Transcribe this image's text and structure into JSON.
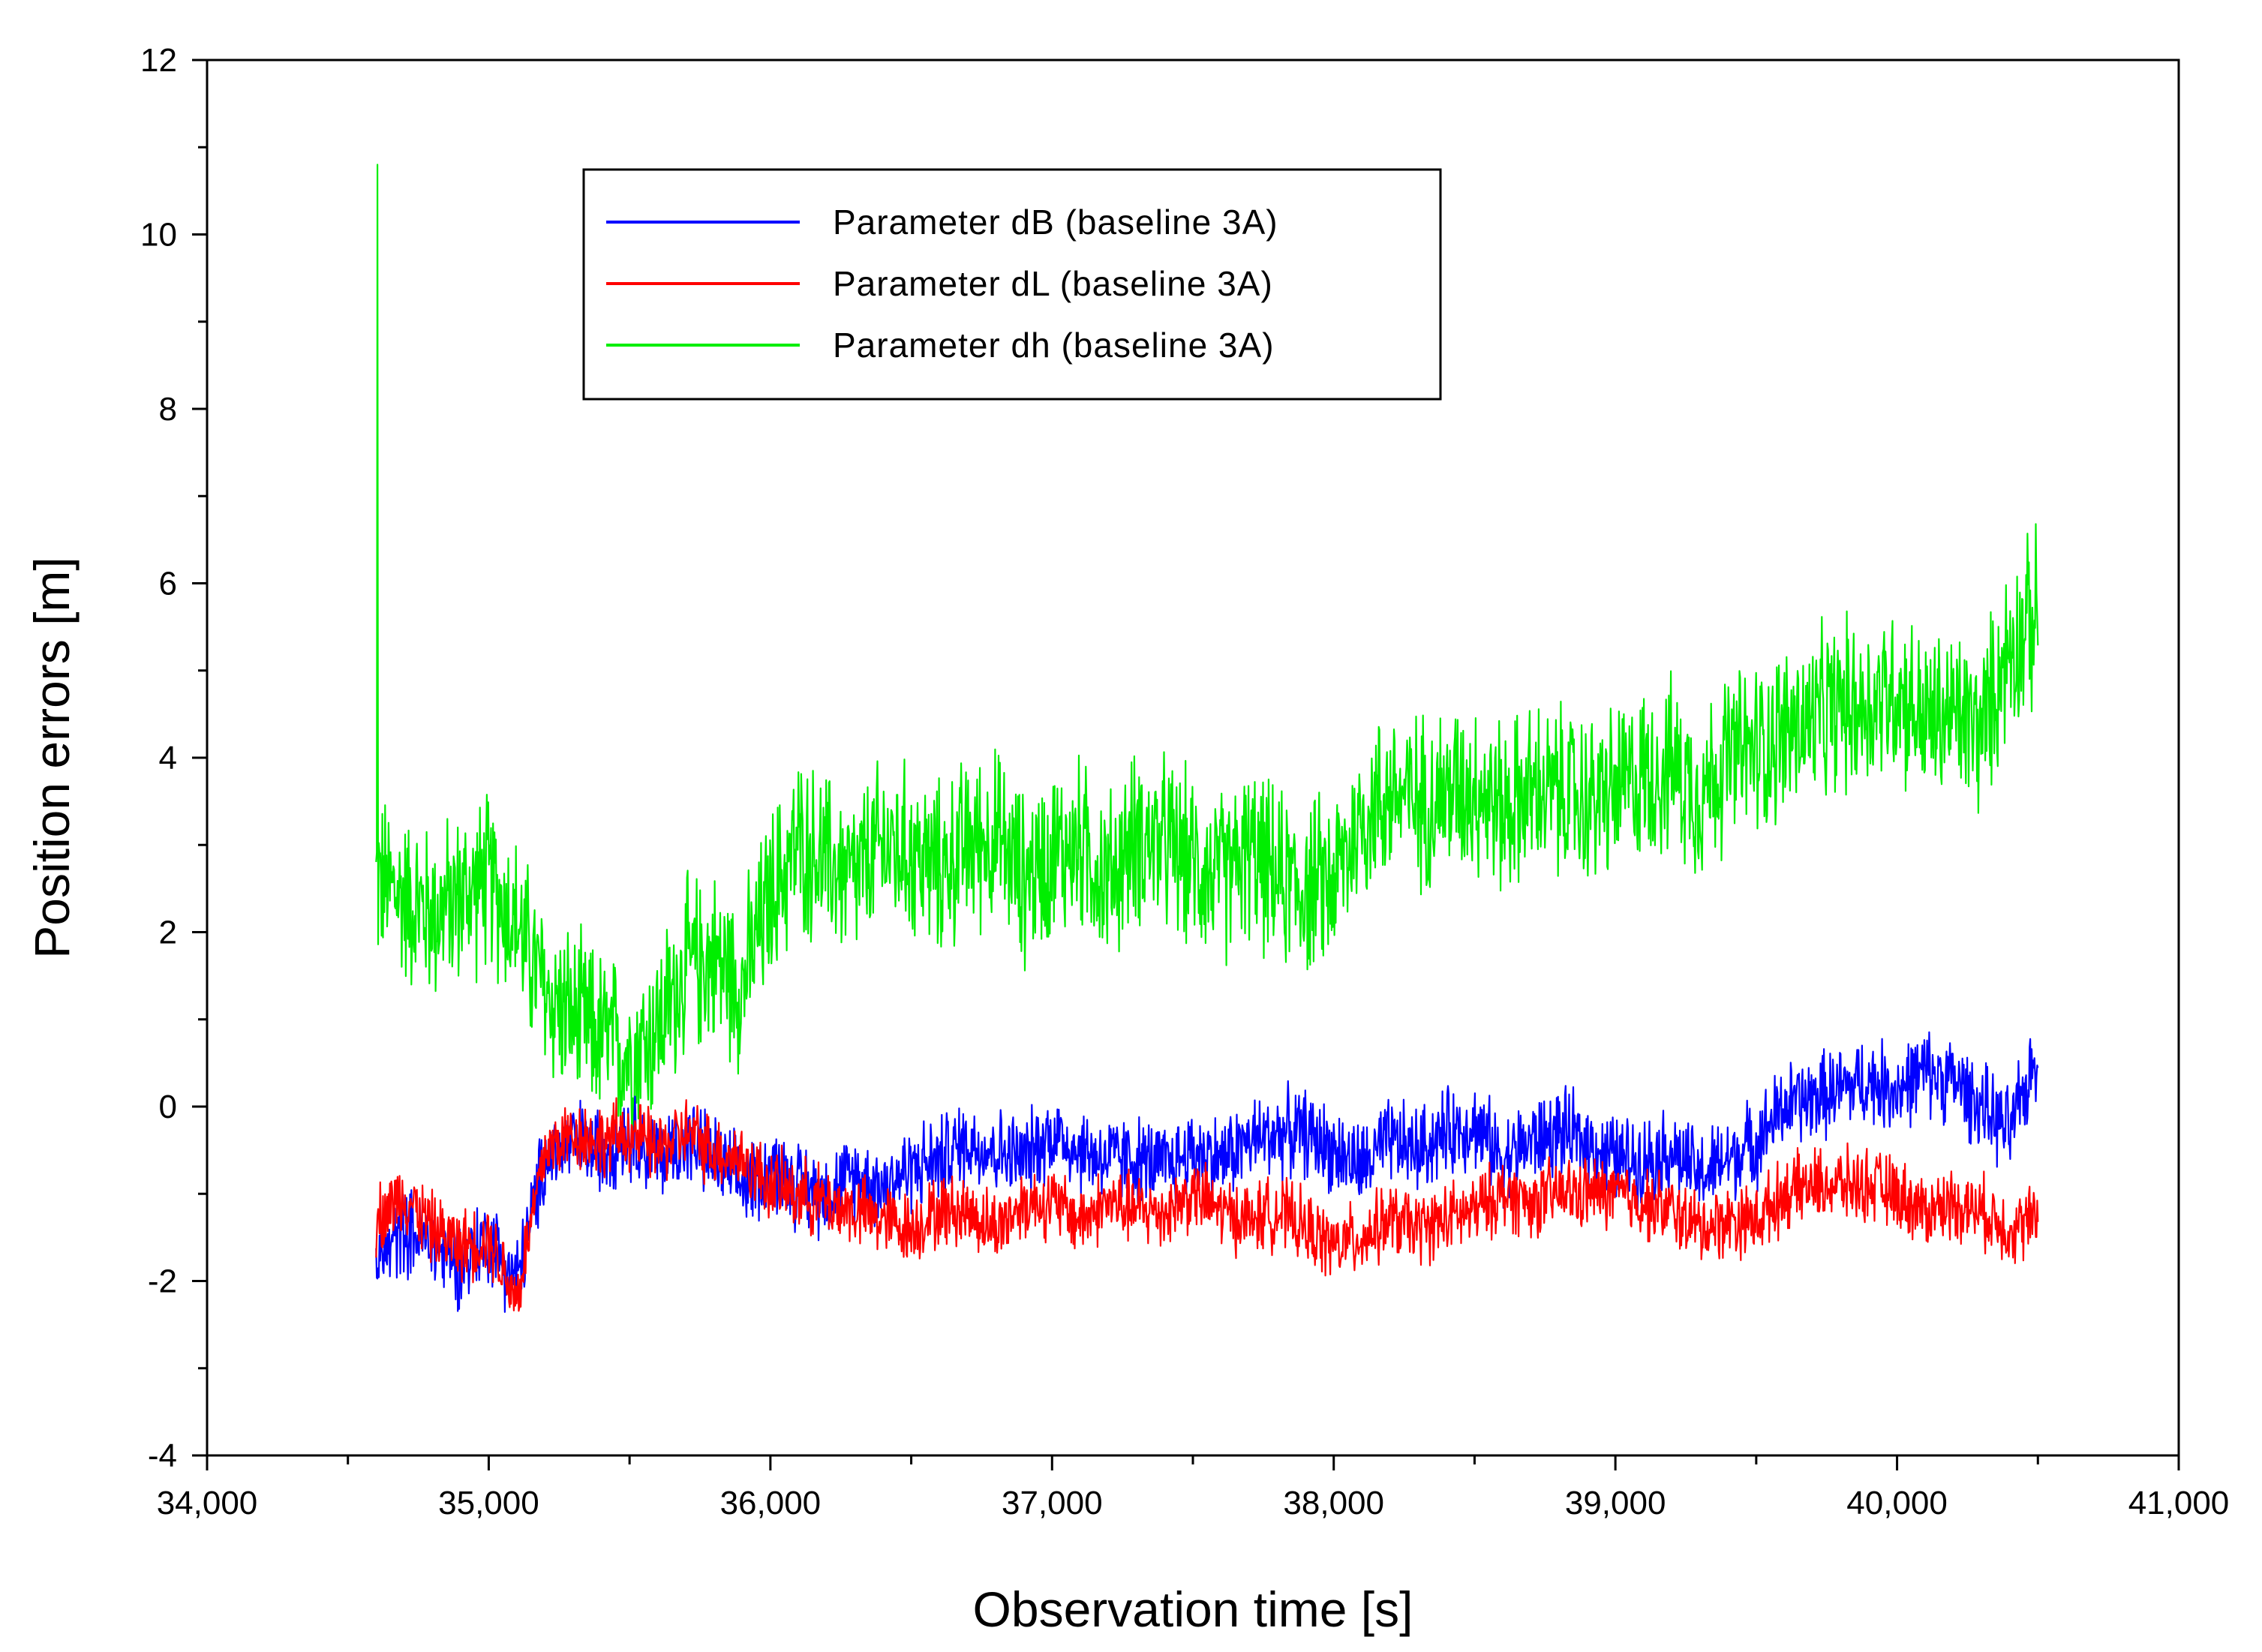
{
  "chart_data": {
    "type": "line",
    "title": "",
    "xlabel": "Observation time [s]",
    "ylabel": "Position errors [m]",
    "xlim": [
      34000,
      41000
    ],
    "ylim": [
      -4,
      12
    ],
    "x_ticks": [
      34000,
      35000,
      36000,
      37000,
      38000,
      39000,
      40000,
      41000
    ],
    "x_tick_labels": [
      "34,000",
      "35,000",
      "36,000",
      "37,000",
      "38,000",
      "39,000",
      "40,000",
      "41,000"
    ],
    "y_ticks": [
      -4,
      -2,
      0,
      2,
      4,
      6,
      8,
      10,
      12
    ],
    "y_tick_labels": [
      "-4",
      "-2",
      "0",
      "2",
      "4",
      "6",
      "8",
      "10",
      "12"
    ],
    "grid": false,
    "legend_position": "top-center",
    "series": [
      {
        "name": "Parameter dB (baseline 3A)",
        "color": "#0000ff",
        "x": [
          34600,
          34700,
          34800,
          34900,
          35000,
          35100,
          35200,
          35300,
          35400,
          35500,
          35600,
          35700,
          35800,
          35900,
          36000,
          36100,
          36200,
          36300,
          36400,
          36500,
          36600,
          36700,
          36800,
          36900,
          37000,
          37100,
          37200,
          37300,
          37400,
          37500,
          37600,
          37700,
          37800,
          37900,
          38000,
          38100,
          38200,
          38300,
          38400,
          38500,
          38600,
          38700,
          38800,
          38900,
          39000,
          39100,
          39200,
          39300,
          39400,
          39500,
          39600,
          39700,
          39800,
          39900,
          40000,
          40100,
          40200,
          40300,
          40400,
          40500
        ],
        "y": [
          -1.8,
          -1.4,
          -1.6,
          -1.8,
          -1.5,
          -2.0,
          -0.6,
          -0.4,
          -0.5,
          -0.3,
          -0.6,
          -0.4,
          -0.6,
          -0.9,
          -0.7,
          -0.9,
          -1.0,
          -0.8,
          -0.9,
          -0.7,
          -0.6,
          -0.4,
          -0.5,
          -0.6,
          -0.3,
          -0.5,
          -0.6,
          -0.6,
          -0.7,
          -0.5,
          -0.6,
          -0.4,
          -0.3,
          -0.3,
          -0.5,
          -0.7,
          -0.4,
          -0.5,
          -0.3,
          -0.2,
          -0.6,
          -0.4,
          -0.3,
          -0.4,
          -0.6,
          -0.6,
          -0.5,
          -0.8,
          -0.6,
          -0.4,
          0.0,
          0.1,
          0.2,
          0.3,
          0.2,
          0.4,
          0.3,
          0.0,
          -0.3,
          0.6
        ],
        "noise_amplitude": 0.6
      },
      {
        "name": "Parameter dL (baseline 3A)",
        "color": "#ff0000",
        "x": [
          34600,
          34700,
          34800,
          34900,
          35000,
          35100,
          35200,
          35300,
          35400,
          35500,
          35600,
          35700,
          35800,
          35900,
          36000,
          36100,
          36200,
          36300,
          36400,
          36500,
          36600,
          36700,
          36800,
          36900,
          37000,
          37100,
          37200,
          37300,
          37400,
          37500,
          37600,
          37700,
          37800,
          37900,
          38000,
          38100,
          38200,
          38300,
          38400,
          38500,
          38600,
          38700,
          38800,
          38900,
          39000,
          39100,
          39200,
          39300,
          39400,
          39500,
          39600,
          39700,
          39800,
          39900,
          40000,
          40100,
          40200,
          40300,
          40400,
          40500
        ],
        "y": [
          -1.3,
          -1.0,
          -1.4,
          -1.6,
          -1.5,
          -2.2,
          -0.5,
          -0.3,
          -0.4,
          -0.3,
          -0.5,
          -0.3,
          -0.5,
          -0.6,
          -0.9,
          -1.0,
          -1.1,
          -1.2,
          -1.3,
          -1.4,
          -1.2,
          -1.2,
          -1.4,
          -1.1,
          -1.1,
          -1.3,
          -1.1,
          -1.2,
          -1.2,
          -1.0,
          -1.2,
          -1.3,
          -1.2,
          -1.4,
          -1.6,
          -1.5,
          -1.3,
          -1.4,
          -1.3,
          -1.2,
          -1.0,
          -1.1,
          -1.0,
          -1.0,
          -1.0,
          -1.1,
          -1.2,
          -1.4,
          -1.3,
          -1.3,
          -1.0,
          -0.9,
          -0.9,
          -0.9,
          -1.0,
          -1.2,
          -1.1,
          -1.2,
          -1.4,
          -1.3
        ],
        "noise_amplitude": 0.5
      },
      {
        "name": "Parameter dh (baseline 3A)",
        "color": "#00ee00",
        "x": [
          34600,
          34700,
          34800,
          34900,
          35000,
          35100,
          35200,
          35300,
          35400,
          35500,
          35600,
          35700,
          35800,
          35900,
          36000,
          36100,
          36200,
          36300,
          36400,
          36500,
          36600,
          36700,
          36800,
          36900,
          37000,
          37100,
          37200,
          37300,
          37400,
          37500,
          37600,
          37700,
          37800,
          37900,
          38000,
          38100,
          38200,
          38300,
          38400,
          38500,
          38600,
          38700,
          38800,
          38900,
          39000,
          39100,
          39200,
          39300,
          39400,
          39500,
          39600,
          39700,
          39800,
          39900,
          40000,
          40100,
          40200,
          40300,
          40400,
          40500
        ],
        "y": [
          2.6,
          2.4,
          2.2,
          2.4,
          2.6,
          2.1,
          1.3,
          1.0,
          0.8,
          0.6,
          0.9,
          1.6,
          1.7,
          1.4,
          2.4,
          3.0,
          2.8,
          2.6,
          3.0,
          2.9,
          2.7,
          3.0,
          3.1,
          2.6,
          2.9,
          3.0,
          2.6,
          3.1,
          3.0,
          2.8,
          2.6,
          2.9,
          2.6,
          2.5,
          2.6,
          3.3,
          3.6,
          3.5,
          3.6,
          3.7,
          3.4,
          3.6,
          3.6,
          3.5,
          3.6,
          3.8,
          3.9,
          3.6,
          4.0,
          4.1,
          4.3,
          4.4,
          4.6,
          4.6,
          4.8,
          4.4,
          4.5,
          4.3,
          5.3,
          5.6
        ],
        "noise_amplitude": 1.2,
        "spike": {
          "x": 34600,
          "y": 10.8
        }
      }
    ]
  }
}
